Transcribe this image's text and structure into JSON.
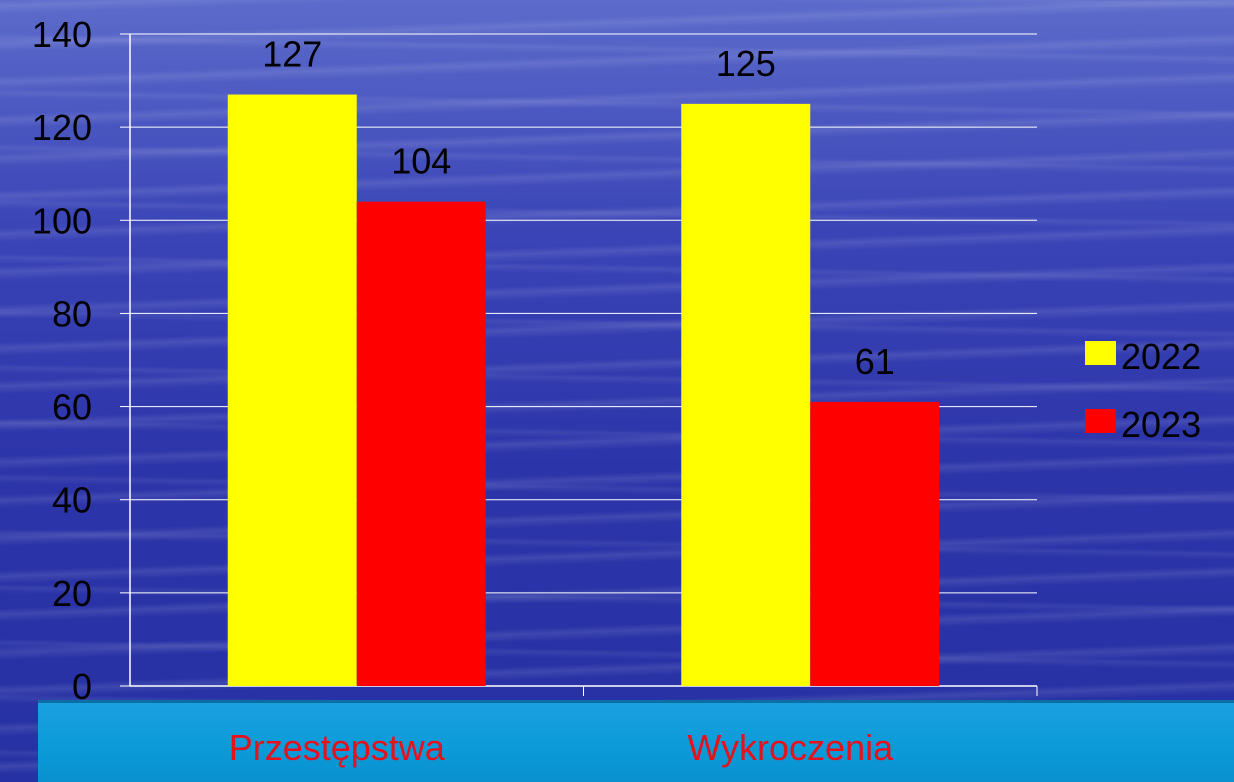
{
  "chart_data": {
    "type": "bar",
    "categories": [
      "Przestępstwa",
      "Wykroczenia"
    ],
    "series": [
      {
        "name": "2022",
        "values": [
          127,
          125
        ],
        "color": "#ffff00"
      },
      {
        "name": "2023",
        "values": [
          104,
          61
        ],
        "color": "#ff0000"
      }
    ],
    "ylim": [
      0,
      140
    ],
    "yticks": [
      0,
      20,
      40,
      60,
      80,
      100,
      120,
      140
    ],
    "grid": true,
    "legend": "right",
    "category_label_color": "#e8101a"
  }
}
